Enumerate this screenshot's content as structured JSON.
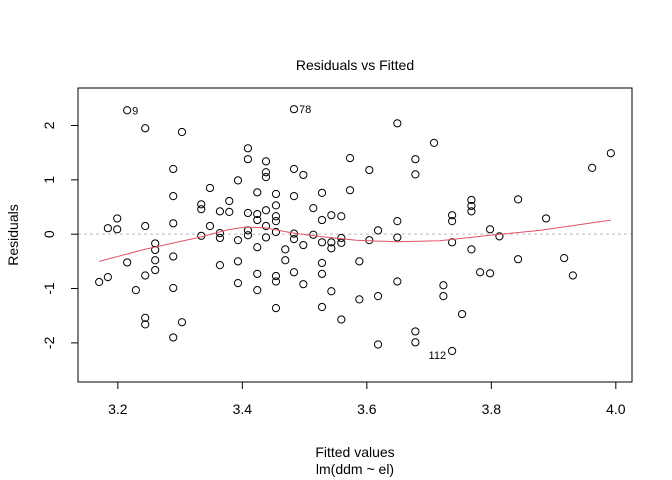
{
  "chart_data": {
    "type": "scatter",
    "title": "Residuals vs Fitted",
    "xlabel": "Fitted values",
    "subtitle": "lm(ddm ~ el)",
    "ylabel": "Residuals",
    "xlim": [
      3.136,
      4.026
    ],
    "ylim": [
      -2.72,
      2.69
    ],
    "xticks": [
      3.2,
      3.4,
      3.6,
      3.8,
      4.0
    ],
    "xtick_labels": [
      "3.2",
      "3.4",
      "3.6",
      "3.8",
      "4.0"
    ],
    "yticks": [
      -2,
      -1,
      0,
      1,
      2
    ],
    "ytick_labels": [
      "-2",
      "-1",
      "0",
      "1",
      "2"
    ],
    "zero_line": 0,
    "colors": {
      "points": "#000000",
      "smooth": "#DF536B",
      "zero": "#BEBEBE"
    },
    "points": [
      [
        3.215,
        2.28
      ],
      [
        3.244,
        1.95
      ],
      [
        3.303,
        1.88
      ],
      [
        3.409,
        1.58
      ],
      [
        3.409,
        1.38
      ],
      [
        3.289,
        1.2
      ],
      [
        3.393,
        0.99
      ],
      [
        3.289,
        0.7
      ],
      [
        3.348,
        0.85
      ],
      [
        3.424,
        0.77
      ],
      [
        3.334,
        0.55
      ],
      [
        3.334,
        0.46
      ],
      [
        3.379,
        0.61
      ],
      [
        3.364,
        0.42
      ],
      [
        3.379,
        0.41
      ],
      [
        3.409,
        0.39
      ],
      [
        3.424,
        0.37
      ],
      [
        3.424,
        0.26
      ],
      [
        3.199,
        0.29
      ],
      [
        3.184,
        0.11
      ],
      [
        3.199,
        0.09
      ],
      [
        3.244,
        0.15
      ],
      [
        3.289,
        0.2
      ],
      [
        3.348,
        0.15
      ],
      [
        3.334,
        -0.03
      ],
      [
        3.364,
        0.02
      ],
      [
        3.364,
        -0.07
      ],
      [
        3.409,
        0.07
      ],
      [
        3.409,
        -0.02
      ],
      [
        3.393,
        -0.11
      ],
      [
        3.26,
        -0.17
      ],
      [
        3.26,
        -0.29
      ],
      [
        3.424,
        -0.24
      ],
      [
        3.215,
        -0.52
      ],
      [
        3.26,
        -0.48
      ],
      [
        3.289,
        -0.41
      ],
      [
        3.26,
        -0.66
      ],
      [
        3.244,
        -0.76
      ],
      [
        3.364,
        -0.57
      ],
      [
        3.393,
        -0.5
      ],
      [
        3.17,
        -0.88
      ],
      [
        3.184,
        -0.79
      ],
      [
        3.229,
        -1.03
      ],
      [
        3.289,
        -0.99
      ],
      [
        3.393,
        -0.9
      ],
      [
        3.424,
        -0.73
      ],
      [
        3.424,
        -1.03
      ],
      [
        3.244,
        -1.54
      ],
      [
        3.244,
        -1.66
      ],
      [
        3.303,
        -1.62
      ],
      [
        3.289,
        -1.9
      ],
      [
        3.483,
        2.3
      ],
      [
        3.649,
        2.04
      ],
      [
        3.708,
        1.68
      ],
      [
        3.438,
        1.34
      ],
      [
        3.438,
        1.14
      ],
      [
        3.438,
        1.05
      ],
      [
        3.483,
        1.2
      ],
      [
        3.498,
        1.09
      ],
      [
        3.573,
        1.4
      ],
      [
        3.604,
        1.18
      ],
      [
        3.678,
        1.38
      ],
      [
        3.678,
        1.1
      ],
      [
        3.573,
        0.81
      ],
      [
        3.454,
        0.74
      ],
      [
        3.483,
        0.7
      ],
      [
        3.528,
        0.76
      ],
      [
        3.454,
        0.53
      ],
      [
        3.438,
        0.44
      ],
      [
        3.454,
        0.33
      ],
      [
        3.454,
        0.24
      ],
      [
        3.514,
        0.48
      ],
      [
        3.543,
        0.35
      ],
      [
        3.559,
        0.33
      ],
      [
        3.528,
        0.26
      ],
      [
        3.438,
        0.15
      ],
      [
        3.438,
        -0.06
      ],
      [
        3.454,
        0.04
      ],
      [
        3.483,
        0.01
      ],
      [
        3.483,
        -0.09
      ],
      [
        3.514,
        -0.01
      ],
      [
        3.498,
        -0.2
      ],
      [
        3.528,
        -0.15
      ],
      [
        3.543,
        -0.15
      ],
      [
        3.543,
        -0.26
      ],
      [
        3.559,
        -0.07
      ],
      [
        3.559,
        -0.16
      ],
      [
        3.604,
        -0.11
      ],
      [
        3.618,
        0.07
      ],
      [
        3.649,
        0.24
      ],
      [
        3.649,
        -0.06
      ],
      [
        3.469,
        -0.28
      ],
      [
        3.469,
        -0.48
      ],
      [
        3.528,
        -0.53
      ],
      [
        3.588,
        -0.5
      ],
      [
        3.454,
        -0.77
      ],
      [
        3.454,
        -0.87
      ],
      [
        3.483,
        -0.7
      ],
      [
        3.498,
        -0.92
      ],
      [
        3.528,
        -0.73
      ],
      [
        3.543,
        -1.05
      ],
      [
        3.649,
        -0.87
      ],
      [
        3.454,
        -1.36
      ],
      [
        3.528,
        -1.34
      ],
      [
        3.559,
        -1.57
      ],
      [
        3.588,
        -1.2
      ],
      [
        3.618,
        -1.14
      ],
      [
        3.678,
        -1.79
      ],
      [
        3.678,
        -1.99
      ],
      [
        3.618,
        -2.03
      ],
      [
        3.723,
        -0.94
      ],
      [
        3.723,
        -1.14
      ],
      [
        3.992,
        1.49
      ],
      [
        3.962,
        1.22
      ],
      [
        3.768,
        0.63
      ],
      [
        3.768,
        0.52
      ],
      [
        3.768,
        0.42
      ],
      [
        3.843,
        0.64
      ],
      [
        3.737,
        0.35
      ],
      [
        3.737,
        0.24
      ],
      [
        3.888,
        0.29
      ],
      [
        3.798,
        0.09
      ],
      [
        3.813,
        -0.04
      ],
      [
        3.737,
        -0.15
      ],
      [
        3.768,
        -0.28
      ],
      [
        3.843,
        -0.46
      ],
      [
        3.917,
        -0.44
      ],
      [
        3.782,
        -0.7
      ],
      [
        3.798,
        -0.72
      ],
      [
        3.931,
        -0.76
      ],
      [
        3.753,
        -1.47
      ],
      [
        3.737,
        -2.15
      ]
    ],
    "point_labels": [
      {
        "text": "9",
        "x": 3.215,
        "y": 2.28,
        "side": "right"
      },
      {
        "text": "78",
        "x": 3.483,
        "y": 2.3,
        "side": "right"
      },
      {
        "text": "112",
        "x": 3.737,
        "y": -2.15,
        "side": "left"
      }
    ],
    "smooth": [
      [
        3.17,
        -0.5
      ],
      [
        3.243,
        -0.28
      ],
      [
        3.334,
        -0.05
      ],
      [
        3.377,
        0.08
      ],
      [
        3.404,
        0.13
      ],
      [
        3.436,
        0.12
      ],
      [
        3.482,
        0.02
      ],
      [
        3.524,
        -0.04
      ],
      [
        3.583,
        -0.11
      ],
      [
        3.648,
        -0.14
      ],
      [
        3.717,
        -0.12
      ],
      [
        3.798,
        -0.02
      ],
      [
        3.878,
        0.07
      ],
      [
        3.992,
        0.26
      ]
    ]
  }
}
